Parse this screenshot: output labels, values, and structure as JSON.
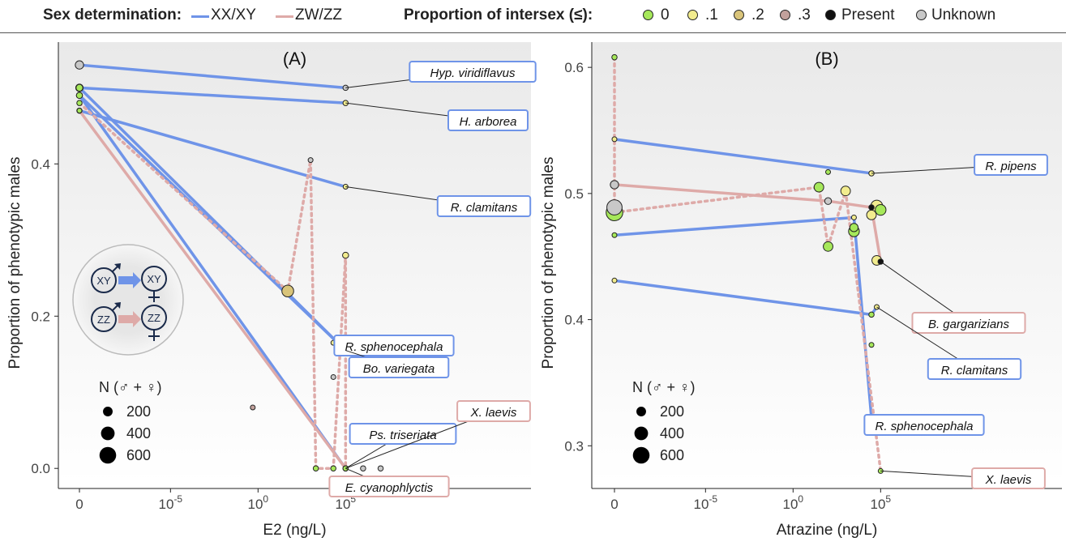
{
  "legend": {
    "sex_title": "Sex determination:",
    "sex_items": [
      {
        "label": "XX/XY",
        "color": "#6f94e8"
      },
      {
        "label": "ZW/ZZ",
        "color": "#deaaa8"
      }
    ],
    "intersex_title": "Proportion of intersex (≤):",
    "intersex_items": [
      {
        "label": "0",
        "color": "#a6e85a"
      },
      {
        "label": ".1",
        "color": "#f2ec8e"
      },
      {
        "label": ".2",
        "color": "#d9c47a"
      },
      {
        "label": ".3",
        "color": "#c2a19c"
      },
      {
        "label": "Present",
        "color": "#111111"
      },
      {
        "label": "Unknown",
        "color": "#c8c8c8"
      }
    ]
  },
  "chart_data": [
    {
      "type": "scatter",
      "panel_label": "(A)",
      "xlabel": "E2 (ng/L)",
      "ylabel": "Proportion of phenotypic males",
      "xscale": "log (with 0 shown separately)",
      "x_ticks": [
        "0",
        "10^-5",
        "10^0",
        "10^5"
      ],
      "y_ticks": [
        "0.0",
        "0.2",
        "0.4"
      ],
      "ylim": [
        -0.02,
        0.56
      ],
      "size_legend": {
        "title": "N (♂ + ♀)",
        "items": [
          "200",
          "400",
          "600"
        ]
      },
      "series": [
        {
          "name": "Hyp. viridiflavus",
          "system": "XX/XY",
          "style": "solid",
          "points": [
            {
              "x": 0,
              "y": 0.53,
              "intersex": "Unknown",
              "n": 150
            },
            {
              "x": 100000,
              "y": 0.5,
              "intersex": "Unknown",
              "n": 60
            }
          ]
        },
        {
          "name": "H. arborea",
          "system": "XX/XY",
          "style": "solid",
          "points": [
            {
              "x": 0,
              "y": 0.5,
              "intersex": "Present",
              "n": 120
            },
            {
              "x": 100000,
              "y": 0.48,
              "intersex": ".1",
              "n": 60
            }
          ]
        },
        {
          "name": "R. clamitans",
          "system": "XX/XY",
          "style": "solid",
          "points": [
            {
              "x": 0,
              "y": 0.47,
              "intersex": "0",
              "n": 60
            },
            {
              "x": 100000,
              "y": 0.37,
              "intersex": ".1",
              "n": 50
            }
          ]
        },
        {
          "name": "R. sphenocephala",
          "system": "XX/XY",
          "style": "solid",
          "points": [
            {
              "x": 0,
              "y": 0.5,
              "intersex": "0",
              "n": 100
            },
            {
              "x": 100000,
              "y": 0.155,
              "intersex": ".1",
              "n": 30
            }
          ]
        },
        {
          "name": "Bo. variegata",
          "system": "XX/XY",
          "style": "solid",
          "points": [
            {
              "x": 0,
              "y": 0.49,
              "intersex": "0",
              "n": 80
            },
            {
              "x": 100000,
              "y": 0.155,
              "intersex": ".1",
              "n": 30
            }
          ]
        },
        {
          "name": "Ps. triseriata",
          "system": "XX/XY",
          "style": "solid",
          "points": [
            {
              "x": 0,
              "y": 0.49,
              "intersex": "0",
              "n": 80
            },
            {
              "x": 100000,
              "y": 0.0,
              "intersex": "0",
              "n": 60
            }
          ]
        },
        {
          "name": "X. laevis",
          "system": "ZW/ZZ",
          "style": "dotted",
          "points": [
            {
              "x": 0,
              "y": 0.48,
              "intersex": "0",
              "n": 60
            },
            {
              "x": 50,
              "y": 0.233,
              "intersex": ".2",
              "n": 300
            },
            {
              "x": 1000,
              "y": 0.405,
              "intersex": "Unknown",
              "n": 40
            },
            {
              "x": 2000,
              "y": 0.0,
              "intersex": "0",
              "n": 60
            },
            {
              "x": 20000,
              "y": 0.0,
              "intersex": "0",
              "n": 60
            },
            {
              "x": 100000,
              "y": 0.28,
              "intersex": ".1",
              "n": 80
            },
            {
              "x": 100000,
              "y": 0.0,
              "intersex": "Unknown",
              "n": 60
            }
          ]
        },
        {
          "name": "E. cyanophlyctis",
          "system": "ZW/ZZ",
          "style": "solid",
          "points": [
            {
              "x": 0,
              "y": 0.47,
              "intersex": "0",
              "n": 50
            },
            {
              "x": 100000,
              "y": 0.0,
              "intersex": "0",
              "n": 60
            }
          ]
        }
      ],
      "extra_points": [
        {
          "x": 0.5,
          "y": 0.08,
          "intersex": ".3",
          "n": 30
        },
        {
          "x": 20000,
          "y": 0.12,
          "intersex": "Unknown",
          "n": 30
        },
        {
          "x": 20000,
          "y": 0.165,
          "intersex": ".1",
          "n": 30
        },
        {
          "x": 1000000,
          "y": 0.0,
          "intersex": "Unknown",
          "n": 60
        },
        {
          "x": 10000000,
          "y": 0.0,
          "intersex": "Unknown",
          "n": 60
        }
      ]
    },
    {
      "type": "scatter",
      "panel_label": "(B)",
      "xlabel": "Atrazine (ng/L)",
      "ylabel": "Proportion of phenotypic males",
      "xscale": "log (with 0 shown separately)",
      "x_ticks": [
        "0",
        "10^-5",
        "10^0",
        "10^5"
      ],
      "y_ticks": [
        "0.3",
        "0.4",
        "0.5",
        "0.6"
      ],
      "ylim": [
        0.27,
        0.62
      ],
      "size_legend": {
        "title": "N (♂ + ♀)",
        "items": [
          "200",
          "400",
          "600"
        ]
      },
      "series": [
        {
          "name": "R. pipens",
          "system": "XX/XY",
          "style": "solid",
          "points": [
            {
              "x": 0,
              "y": 0.543,
              "intersex": ".1",
              "n": 40
            },
            {
              "x": 30000,
              "y": 0.516,
              "intersex": ".1",
              "n": 60
            }
          ]
        },
        {
          "name": "B. gargarizians",
          "system": "ZW/ZZ",
          "style": "solid",
          "points": [
            {
              "x": 0,
              "y": 0.507,
              "intersex": "Unknown",
              "n": 150
            },
            {
              "x": 100,
              "y": 0.494,
              "intersex": "Unknown",
              "n": 100
            },
            {
              "x": 30000,
              "y": 0.489,
              "intersex": "Present",
              "n": 60
            },
            {
              "x": 100000,
              "y": 0.446,
              "intersex": "Present",
              "n": 60
            }
          ]
        },
        {
          "name": "R. clamitans",
          "system": "XX/XY",
          "style": "solid",
          "points": [
            {
              "x": 0,
              "y": 0.431,
              "intersex": ".1",
              "n": 50
            },
            {
              "x": 30000,
              "y": 0.404,
              "intersex": "0",
              "n": 60
            },
            {
              "x": 60000,
              "y": 0.41,
              "intersex": ".1",
              "n": 40
            }
          ]
        },
        {
          "name": "R. sphenocephala",
          "system": "XX/XY",
          "style": "solid",
          "points": [
            {
              "x": 0,
              "y": 0.467,
              "intersex": "0",
              "n": 30
            },
            {
              "x": 3000,
              "y": 0.481,
              "intersex": ".1",
              "n": 40
            },
            {
              "x": 30000,
              "y": 0.322,
              "intersex": ".1",
              "n": 40
            }
          ]
        },
        {
          "name": "X. laevis",
          "system": "ZW/ZZ",
          "style": "dotted",
          "points": [
            {
              "x": 0,
              "y": 0.608,
              "intersex": "0",
              "n": 60
            },
            {
              "x": 0,
              "y": 0.485,
              "intersex": "0",
              "n": 600
            },
            {
              "x": 30,
              "y": 0.505,
              "intersex": "0",
              "n": 200
            },
            {
              "x": 100,
              "y": 0.458,
              "intersex": "0",
              "n": 200
            },
            {
              "x": 1000,
              "y": 0.502,
              "intersex": ".1",
              "n": 200
            },
            {
              "x": 100000,
              "y": 0.28,
              "intersex": "0",
              "n": 40
            }
          ]
        }
      ],
      "extra_points": [
        {
          "x": 0,
          "y": 0.489,
          "intersex": "Unknown",
          "n": 500
        },
        {
          "x": 100,
          "y": 0.517,
          "intersex": "0",
          "n": 30
        },
        {
          "x": 3000,
          "y": 0.47,
          "intersex": "0",
          "n": 250
        },
        {
          "x": 3000,
          "y": 0.473,
          "intersex": "0",
          "n": 150
        },
        {
          "x": 30000,
          "y": 0.483,
          "intersex": ".1",
          "n": 200
        },
        {
          "x": 30000,
          "y": 0.38,
          "intersex": "0",
          "n": 50
        },
        {
          "x": 60000,
          "y": 0.49,
          "intersex": ".1",
          "n": 300
        },
        {
          "x": 60000,
          "y": 0.447,
          "intersex": ".1",
          "n": 200
        },
        {
          "x": 100000,
          "y": 0.487,
          "intersex": "0",
          "n": 250
        }
      ]
    }
  ]
}
